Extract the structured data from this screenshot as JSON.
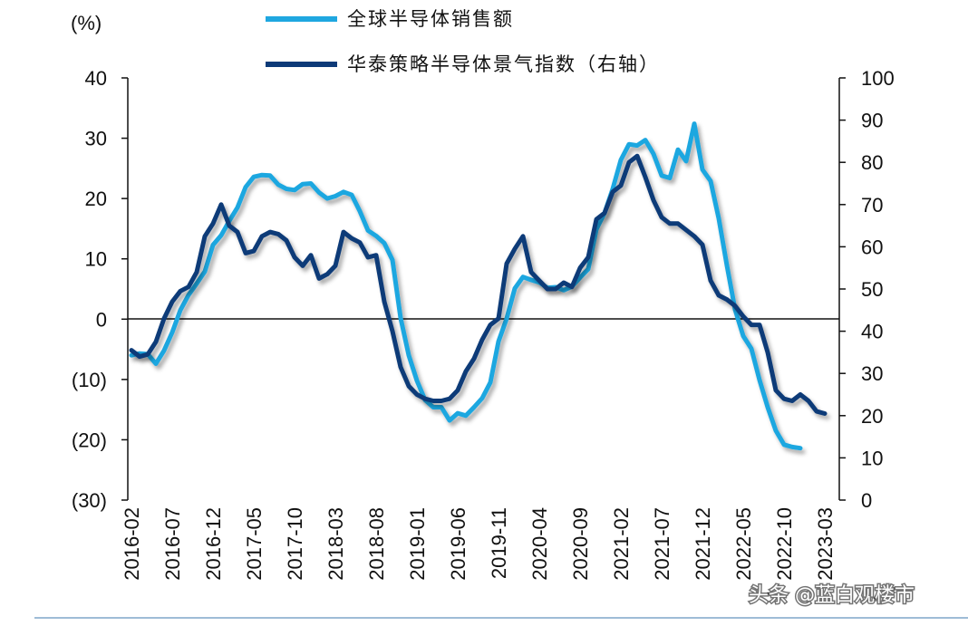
{
  "chart_data": {
    "type": "line",
    "left_axis_unit": "(%)",
    "left_axis": {
      "ylim": [
        -30,
        40
      ],
      "ticks": [
        40,
        30,
        20,
        10,
        0,
        -10,
        -20,
        -30
      ],
      "tick_labels": [
        "40",
        "30",
        "20",
        "10",
        "0",
        "(10)",
        "(20)",
        "(30)"
      ]
    },
    "right_axis": {
      "ylim": [
        0,
        100
      ],
      "ticks": [
        100,
        90,
        80,
        70,
        60,
        50,
        40,
        30,
        20,
        10,
        0
      ],
      "tick_labels": [
        "100",
        "90",
        "80",
        "70",
        "60",
        "50",
        "40",
        "30",
        "20",
        "10",
        "0"
      ]
    },
    "x_tick_labels": [
      "2016-02",
      "2016-07",
      "2016-12",
      "2017-05",
      "2017-10",
      "2018-03",
      "2018-08",
      "2019-01",
      "2019-06",
      "2019-11",
      "2020-04",
      "2020-09",
      "2021-02",
      "2021-07",
      "2021-12",
      "2022-05",
      "2022-10",
      "2023-03"
    ],
    "x_tick_index": [
      0,
      5,
      10,
      15,
      20,
      25,
      30,
      35,
      40,
      45,
      50,
      55,
      60,
      65,
      70,
      75,
      80,
      85
    ],
    "series": [
      {
        "name": "全球半导体销售额",
        "axis": "left",
        "color": "#1fa7e0",
        "start": "2016-02",
        "values": [
          -6.0,
          -5.7,
          -5.8,
          -7.4,
          -5.2,
          -2.2,
          1.5,
          4.0,
          5.9,
          7.9,
          12.3,
          13.9,
          16.3,
          18.5,
          21.9,
          23.6,
          23.9,
          23.8,
          22.3,
          21.6,
          21.4,
          22.4,
          22.5,
          21.0,
          20.0,
          20.4,
          21.1,
          20.6,
          17.9,
          14.7,
          13.8,
          12.6,
          9.8,
          0.2,
          -6.0,
          -10.2,
          -13.4,
          -14.6,
          -14.6,
          -16.8,
          -15.6,
          -16.0,
          -14.6,
          -13.1,
          -10.5,
          -3.7,
          0.1,
          5.1,
          7.0,
          6.5,
          6.1,
          5.2,
          5.3,
          4.8,
          5.4,
          6.9,
          8.3,
          14.9,
          17.6,
          21.6,
          26.4,
          29.0,
          28.8,
          29.7,
          27.4,
          23.8,
          23.4,
          28.1,
          26.2,
          32.4,
          24.8,
          22.9,
          16.7,
          8.9,
          1.6,
          -2.8,
          -4.9,
          -10.1,
          -14.6,
          -18.5,
          -20.8,
          -21.2,
          -21.4
        ]
      },
      {
        "name": "华泰策略半导体景气指数（右轴）",
        "axis": "right",
        "color": "#0d3a78",
        "start": "2016-02",
        "values": [
          35.5,
          34.0,
          34.5,
          37.5,
          43.0,
          47.0,
          49.5,
          50.5,
          54.0,
          62.5,
          65.5,
          70.0,
          65.0,
          63.5,
          58.5,
          59.0,
          62.5,
          63.5,
          63.0,
          61.5,
          57.5,
          55.5,
          58.0,
          52.5,
          53.5,
          55.5,
          63.5,
          62.0,
          61.0,
          57.5,
          58.0,
          47.0,
          40.0,
          31.5,
          27.0,
          25.0,
          24.0,
          23.5,
          23.5,
          24.0,
          26.0,
          30.5,
          33.5,
          38.0,
          41.5,
          43.0,
          56.0,
          59.5,
          62.5,
          54.0,
          52.0,
          50.0,
          50.0,
          51.5,
          50.5,
          55.0,
          57.5,
          66.5,
          68.0,
          73.0,
          74.5,
          80.0,
          81.5,
          76.5,
          71.0,
          67.0,
          65.5,
          65.5,
          64.0,
          62.5,
          60.5,
          52.0,
          48.5,
          47.5,
          46.0,
          43.5,
          41.5,
          41.5,
          35.0,
          26.0,
          24.0,
          23.5,
          25.0,
          23.5,
          21.0,
          20.5
        ]
      }
    ]
  },
  "watermark": "头条 @蓝白观楼市"
}
